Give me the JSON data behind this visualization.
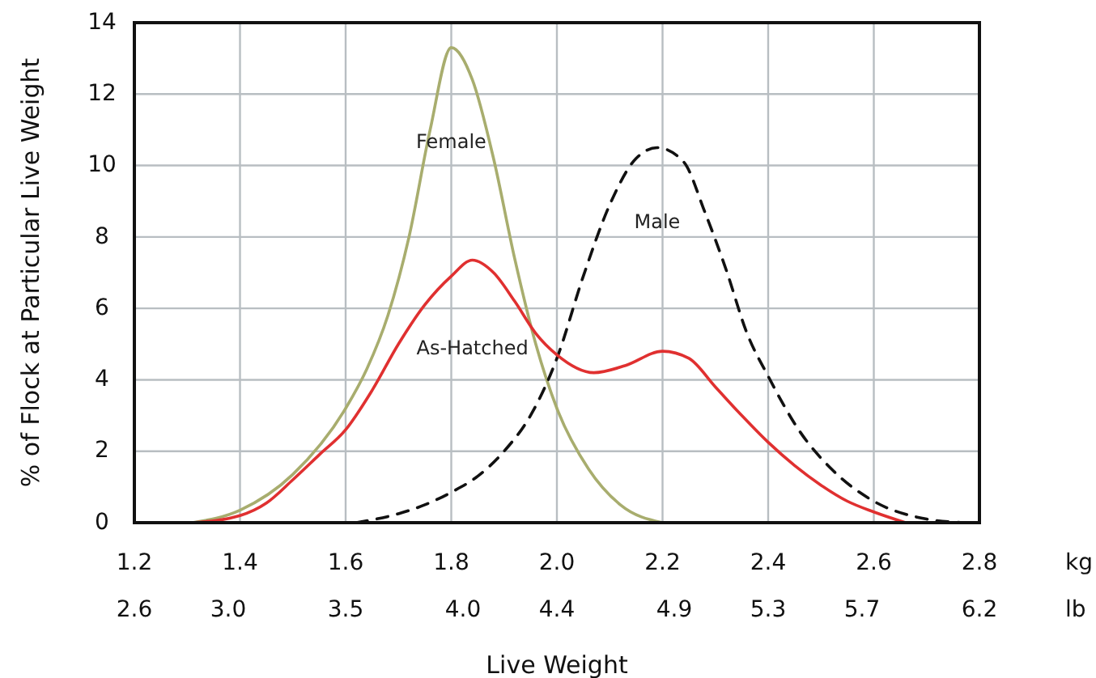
{
  "chart_data": {
    "type": "line",
    "xlabel": "Live Weight",
    "ylabel": "% of Flock at Particular Live Weight",
    "xlim": [
      1.2,
      2.8
    ],
    "xticks": [
      {
        "value": 1.2,
        "label": "1.2"
      },
      1.4,
      1.6,
      1.8,
      {
        "value": 2.0,
        "label": "2.0"
      },
      2.2,
      2.4,
      2.6,
      2.8
    ],
    "x2lim": [
      2.6,
      6.2
    ],
    "x2ticks": [
      2.6,
      {
        "value": 3.0,
        "label": "3.0"
      },
      3.5,
      {
        "value": 4.0,
        "label": "4.0"
      },
      4.4,
      4.9,
      5.3,
      5.7,
      6.2
    ],
    "ylim": [
      0,
      14
    ],
    "yticks": [
      0,
      2,
      4,
      6,
      8,
      10,
      12,
      14
    ],
    "grid": true,
    "annotations": [
      "kg",
      "lb"
    ],
    "series": [
      {
        "name": "Female",
        "color": "#a8ad6e",
        "line_style": "solid",
        "x": [
          1.31,
          1.4,
          1.5,
          1.6,
          1.64,
          1.68,
          1.72,
          1.76,
          1.8,
          1.84,
          1.88,
          1.92,
          1.96,
          2.0,
          2.06,
          2.12,
          2.2
        ],
        "values": [
          0,
          0.35,
          1.35,
          3.2,
          4.3,
          5.8,
          8.0,
          11.0,
          13.3,
          12.4,
          10.2,
          7.4,
          5.0,
          3.2,
          1.5,
          0.5,
          0
        ]
      },
      {
        "name": "Male",
        "color": "#111111",
        "line_style": "dashed",
        "x": [
          1.62,
          1.7,
          1.75,
          1.8,
          1.85,
          1.9,
          1.95,
          2.0,
          2.05,
          2.1,
          2.15,
          2.19,
          2.24,
          2.28,
          2.32,
          2.36,
          2.4,
          2.46,
          2.52,
          2.6,
          2.7,
          2.77
        ],
        "values": [
          0,
          0.25,
          0.5,
          0.85,
          1.3,
          2.0,
          3.0,
          4.6,
          6.9,
          8.9,
          10.2,
          10.5,
          10.1,
          8.7,
          7.1,
          5.3,
          4.1,
          2.55,
          1.5,
          0.6,
          0.1,
          0
        ]
      },
      {
        "name": "As-Hatched",
        "color": "#e03030",
        "line_style": "solid",
        "x": [
          1.31,
          1.4,
          1.45,
          1.5,
          1.55,
          1.6,
          1.65,
          1.7,
          1.75,
          1.8,
          1.84,
          1.88,
          1.92,
          1.96,
          2.0,
          2.07,
          2.13,
          2.2,
          2.25,
          2.3,
          2.35,
          2.4,
          2.45,
          2.5,
          2.55,
          2.6,
          2.66
        ],
        "values": [
          0,
          0.2,
          0.55,
          1.2,
          1.9,
          2.6,
          3.7,
          5.0,
          6.1,
          6.9,
          7.35,
          7.0,
          6.2,
          5.3,
          4.7,
          4.2,
          4.4,
          4.8,
          4.6,
          3.8,
          3.0,
          2.25,
          1.6,
          1.05,
          0.6,
          0.3,
          0
        ]
      }
    ]
  }
}
